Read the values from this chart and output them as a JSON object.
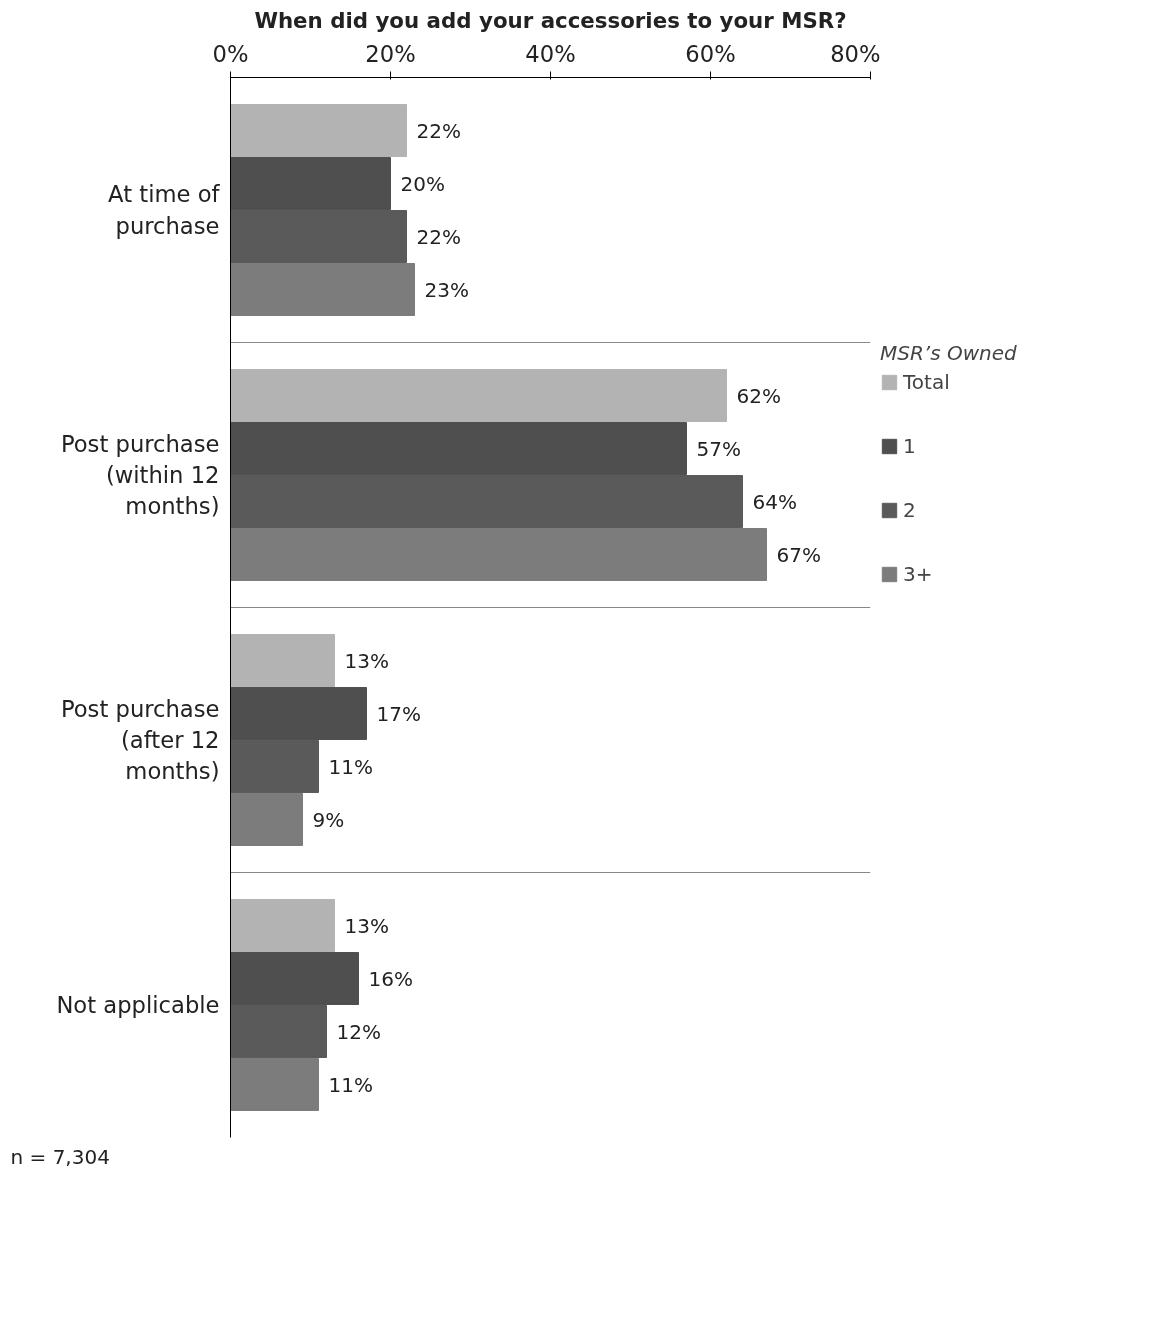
{
  "chart_data": {
    "type": "bar",
    "orientation": "horizontal",
    "title": "When did you add your accessories to your MSR?",
    "categories": [
      "At time of purchase",
      "Post purchase (within 12 months)",
      "Post purchase (after 12 months)",
      "Not applicable"
    ],
    "series": [
      {
        "name": "Total",
        "color": "#b3b3b3",
        "values": [
          22,
          62,
          13,
          13
        ],
        "value_labels": [
          "22%",
          "62%",
          "13%",
          "13%"
        ]
      },
      {
        "name": "1",
        "color": "#4f4f4f",
        "values": [
          20,
          57,
          17,
          16
        ],
        "value_labels": [
          "20%",
          "57%",
          "17%",
          "16%"
        ]
      },
      {
        "name": "2",
        "color": "#5a5a5a",
        "values": [
          22,
          64,
          11,
          12
        ],
        "value_labels": [
          "22%",
          "64%",
          "11%",
          "12%"
        ]
      },
      {
        "name": "3+",
        "color": "#7c7c7c",
        "values": [
          23,
          67,
          9,
          11
        ],
        "value_labels": [
          "23%",
          "67%",
          "9%",
          "11%"
        ]
      }
    ],
    "xlim": [
      0,
      80
    ],
    "xticks": [
      {
        "value": 0,
        "label": "0%"
      },
      {
        "value": 20,
        "label": "20%"
      },
      {
        "value": 40,
        "label": "40%"
      },
      {
        "value": 60,
        "label": "60%"
      },
      {
        "value": 80,
        "label": "80%"
      }
    ],
    "grid": "y",
    "legend": "right",
    "legend_title": "MSR’s Owned",
    "annotations": [
      "n = 7,304"
    ]
  }
}
